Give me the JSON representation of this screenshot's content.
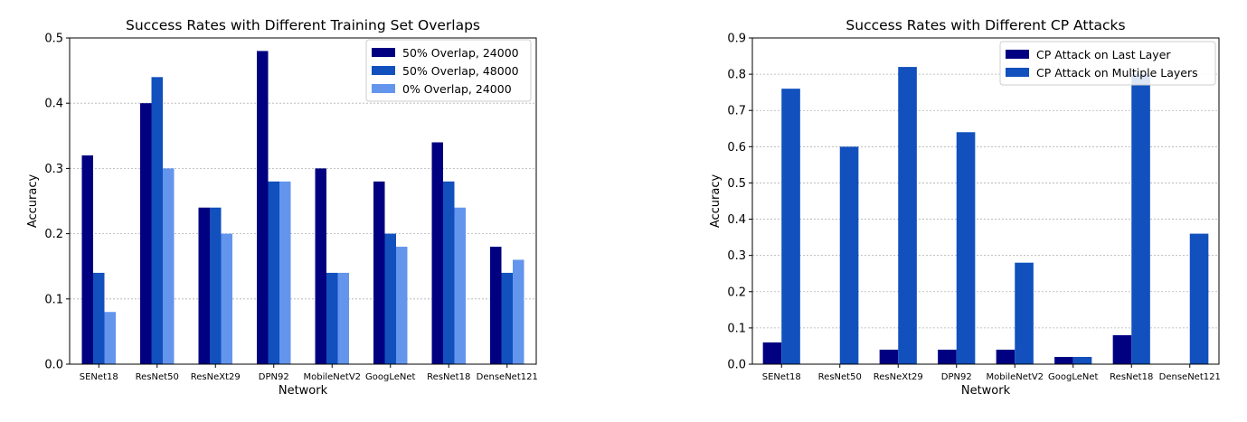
{
  "chart_data": [
    {
      "type": "bar",
      "title": "Success Rates with Different Training Set Overlaps",
      "xlabel": "Network",
      "ylabel": "Accuracy",
      "ylim": [
        0,
        0.5
      ],
      "yticks": [
        "0.0",
        "0.1",
        "0.2",
        "0.3",
        "0.4",
        "0.5"
      ],
      "grid": "horizontal dashed",
      "legend_position": "top-right",
      "categories": [
        "SENet18",
        "ResNet50",
        "ResNeXt29",
        "DPN92",
        "MobileNetV2",
        "GoogLeNet",
        "ResNet18",
        "DenseNet121"
      ],
      "series": [
        {
          "name": "50% Overlap, 24000",
          "color": "#000080",
          "values": [
            0.32,
            0.4,
            0.24,
            0.48,
            0.3,
            0.28,
            0.34,
            0.18
          ]
        },
        {
          "name": "50% Overlap, 48000",
          "color": "#1150bd",
          "values": [
            0.14,
            0.44,
            0.24,
            0.28,
            0.14,
            0.2,
            0.28,
            0.14
          ]
        },
        {
          "name": "0% Overlap, 24000",
          "color": "#6495ed",
          "values": [
            0.08,
            0.3,
            0.2,
            0.28,
            0.14,
            0.18,
            0.24,
            0.16
          ]
        }
      ]
    },
    {
      "type": "bar",
      "title": "Success Rates with Different CP Attacks",
      "xlabel": "Network",
      "ylabel": "Accuracy",
      "ylim": [
        0,
        0.9
      ],
      "yticks": [
        "0.0",
        "0.1",
        "0.2",
        "0.3",
        "0.4",
        "0.5",
        "0.6",
        "0.7",
        "0.8",
        "0.9"
      ],
      "grid": "horizontal dashed",
      "legend_position": "top-right",
      "categories": [
        "SENet18",
        "ResNet50",
        "ResNeXt29",
        "DPN92",
        "MobileNetV2",
        "GoogLeNet",
        "ResNet18",
        "DenseNet121"
      ],
      "series": [
        {
          "name": "CP Attack on Last Layer",
          "color": "#000080",
          "values": [
            0.06,
            0.0,
            0.04,
            0.04,
            0.04,
            0.02,
            0.08,
            0.0
          ]
        },
        {
          "name": "CP Attack on Multiple Layers",
          "color": "#1150bd",
          "values": [
            0.76,
            0.6,
            0.82,
            0.64,
            0.28,
            0.02,
            0.8,
            0.36
          ]
        }
      ]
    }
  ]
}
